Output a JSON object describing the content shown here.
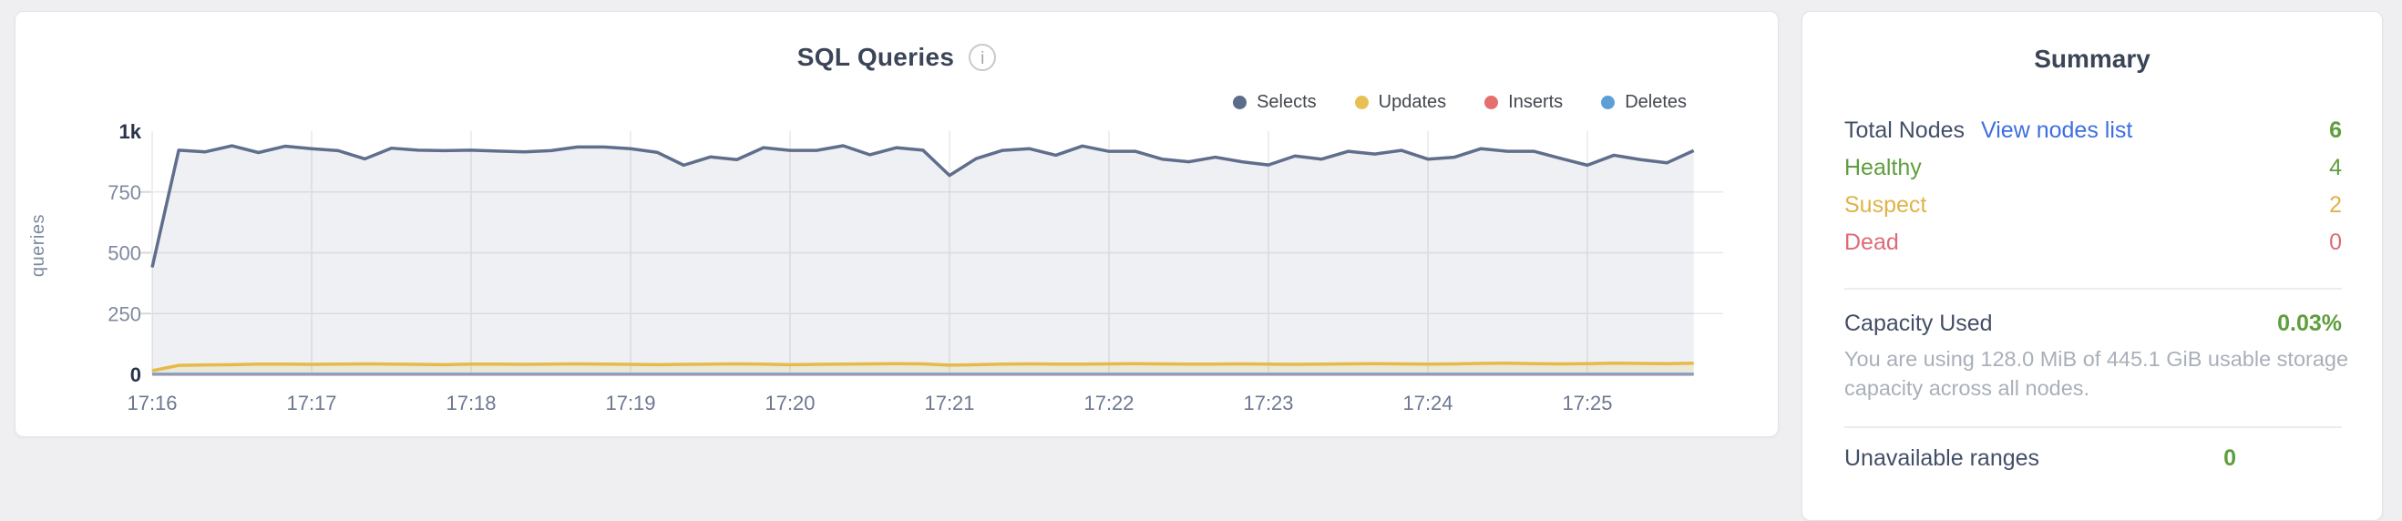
{
  "chart_card": {
    "title": "SQL Queries",
    "info_icon_glyph": "i",
    "legend": [
      {
        "label": "Selects",
        "color": "#5d6c8a"
      },
      {
        "label": "Updates",
        "color": "#e8bf55"
      },
      {
        "label": "Inserts",
        "color": "#e56e6e"
      },
      {
        "label": "Deletes",
        "color": "#5c9fd6"
      }
    ]
  },
  "chart_data": {
    "type": "area",
    "title": "SQL Queries",
    "xlabel": "",
    "ylabel": "queries",
    "ylim": [
      0,
      1000
    ],
    "grid": true,
    "legend_position": "top-right",
    "yticks": [
      {
        "v": 0,
        "label": "0"
      },
      {
        "v": 250,
        "label": "250"
      },
      {
        "v": 500,
        "label": "500"
      },
      {
        "v": 750,
        "label": "750"
      },
      {
        "v": 1000,
        "label": "1k"
      }
    ],
    "xticks": [
      {
        "t": 0,
        "label": "17:16"
      },
      {
        "t": 60,
        "label": "17:17"
      },
      {
        "t": 120,
        "label": "17:18"
      },
      {
        "t": 180,
        "label": "17:19"
      },
      {
        "t": 240,
        "label": "17:20"
      },
      {
        "t": 300,
        "label": "17:21"
      },
      {
        "t": 360,
        "label": "17:22"
      },
      {
        "t": 420,
        "label": "17:23"
      },
      {
        "t": 480,
        "label": "17:24"
      },
      {
        "t": 540,
        "label": "17:25"
      }
    ],
    "x_seconds": [
      0,
      10,
      20,
      30,
      40,
      50,
      60,
      70,
      80,
      90,
      100,
      110,
      120,
      130,
      140,
      150,
      160,
      170,
      180,
      190,
      200,
      210,
      220,
      230,
      240,
      250,
      260,
      270,
      280,
      290,
      300,
      310,
      320,
      330,
      340,
      350,
      360,
      370,
      380,
      390,
      400,
      410,
      420,
      430,
      440,
      450,
      460,
      470,
      480,
      490,
      500,
      510,
      520,
      530,
      540,
      550,
      560,
      570,
      580
    ],
    "series": [
      {
        "name": "Selects",
        "line_color": "#5f6e8c",
        "fill": "rgba(95,110,140,0.10)",
        "width": 3.5,
        "values": [
          440,
          922,
          915,
          940,
          912,
          938,
          928,
          920,
          886,
          930,
          922,
          920,
          922,
          918,
          915,
          920,
          935,
          935,
          928,
          913,
          860,
          894,
          883,
          932,
          921,
          921,
          940,
          903,
          932,
          922,
          818,
          887,
          921,
          928,
          901,
          939,
          917,
          917,
          885,
          874,
          893,
          874,
          861,
          898,
          885,
          917,
          906,
          921,
          885,
          893,
          928,
          917,
          917,
          888,
          860,
          901,
          883,
          870,
          920
        ]
      },
      {
        "name": "Updates",
        "line_color": "#e5ba49",
        "fill": "rgba(229,186,73,0.16)",
        "width": 3.5,
        "values": [
          15,
          37,
          39,
          40,
          42,
          42,
          41,
          42,
          43,
          42,
          41,
          40,
          42,
          42,
          41,
          42,
          43,
          42,
          41,
          40,
          41,
          42,
          43,
          42,
          40,
          41,
          42,
          43,
          44,
          43,
          38,
          40,
          42,
          43,
          42,
          42,
          43,
          44,
          43,
          42,
          42,
          43,
          42,
          41,
          42,
          43,
          44,
          43,
          42,
          43,
          45,
          46,
          44,
          43,
          44,
          46,
          45,
          44,
          46
        ]
      },
      {
        "name": "Inserts",
        "line_color": "#e06c6e",
        "fill": "rgba(224,108,110,0.14)",
        "width": 2,
        "values": [
          0,
          0,
          0,
          0,
          0,
          0,
          0,
          0,
          0,
          0,
          0,
          0,
          0,
          0,
          0,
          0,
          0,
          0,
          0,
          0,
          0,
          0,
          0,
          0,
          0,
          0,
          0,
          0,
          0,
          0,
          0,
          0,
          0,
          0,
          0,
          0,
          0,
          0,
          0,
          0,
          0,
          0,
          0,
          0,
          0,
          0,
          0,
          0,
          0,
          0,
          0,
          0,
          0,
          0,
          0,
          0,
          0,
          0,
          0
        ]
      },
      {
        "name": "Deletes",
        "line_color": "#7fa6cf",
        "fill": "rgba(127,166,207,0.30)",
        "width": 2.5,
        "values": [
          3,
          3,
          3,
          3,
          3,
          3,
          3,
          3,
          3,
          3,
          3,
          3,
          3,
          3,
          3,
          3,
          3,
          3,
          3,
          3,
          3,
          3,
          3,
          3,
          3,
          3,
          3,
          3,
          3,
          3,
          3,
          3,
          3,
          3,
          3,
          3,
          3,
          3,
          3,
          3,
          3,
          3,
          3,
          3,
          3,
          3,
          3,
          3,
          3,
          3,
          3,
          3,
          3,
          3,
          3,
          3,
          3,
          3,
          3
        ]
      }
    ]
  },
  "summary_card": {
    "title": "Summary",
    "rows": [
      {
        "label": "Total Nodes",
        "label_color": "#434f67",
        "link": "View nodes list",
        "link_color": "#3e6ee0",
        "value": "6",
        "value_color": "#5f9e3e",
        "value_bold": true
      },
      {
        "label": "Healthy",
        "label_color": "#5f9e3e",
        "value": "4",
        "value_color": "#5f9e3e",
        "value_bold": false
      },
      {
        "label": "Suspect",
        "label_color": "#dfb347",
        "value": "2",
        "value_color": "#dfb347",
        "value_bold": false
      },
      {
        "label": "Dead",
        "label_color": "#dc6b77",
        "value": "0",
        "value_color": "#dc6b77",
        "value_bold": false
      }
    ],
    "capacity": {
      "label": "Capacity Used",
      "label_color": "#434f67",
      "value": "0.03%",
      "value_color": "#5f9e3e",
      "description": "You are using 128.0 MiB of 445.1 GiB usable storage capacity across all nodes."
    },
    "partial_row": {
      "label": "Unavailable ranges",
      "label_color": "#434f67",
      "value": "0",
      "value_color": "#5f9e3e"
    }
  }
}
